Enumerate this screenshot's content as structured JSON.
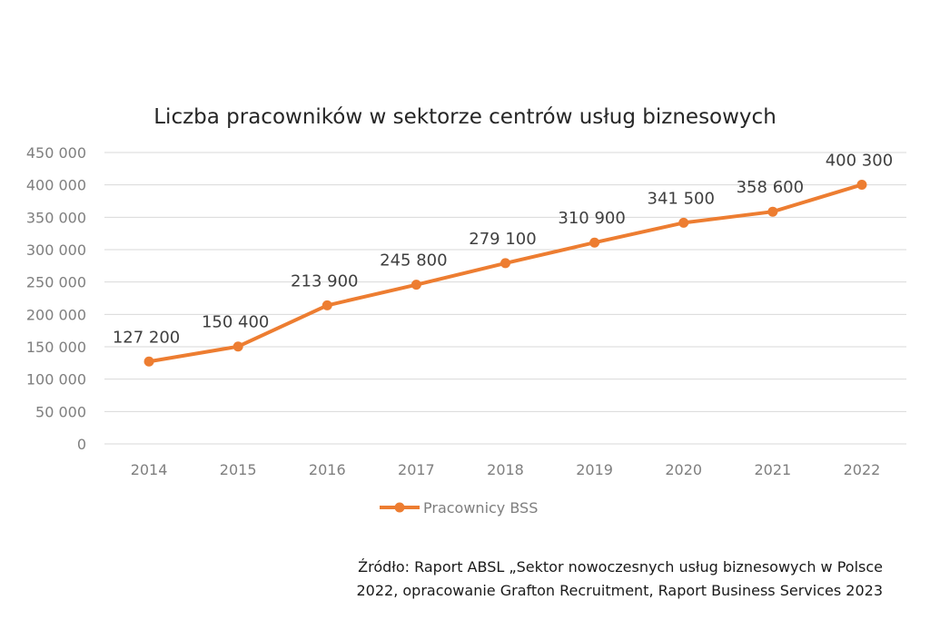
{
  "chart_data": {
    "type": "line",
    "title": "Liczba pracowników w sektorze centrów usług biznesowych",
    "categories": [
      "2014",
      "2015",
      "2016",
      "2017",
      "2018",
      "2019",
      "2020",
      "2021",
      "2022"
    ],
    "series": [
      {
        "name": "Pracownicy BSS",
        "values": [
          127200,
          150400,
          213900,
          245800,
          279100,
          310900,
          341500,
          358600,
          400300
        ],
        "labels": [
          "127 200",
          "150 400",
          "213 900",
          "245 800",
          "279 100",
          "310 900",
          "341 500",
          "358 600",
          "400 300"
        ],
        "color": "#ed7d31"
      }
    ],
    "ylim": [
      0,
      450000
    ],
    "yticks": [
      0,
      50000,
      100000,
      150000,
      200000,
      250000,
      300000,
      350000,
      400000,
      450000
    ],
    "ytick_labels": [
      "0",
      "50 000",
      "100 000",
      "150 000",
      "200 000",
      "250 000",
      "300 000",
      "350 000",
      "400 000",
      "450 000"
    ],
    "grid": true,
    "legend": "bottom"
  },
  "source_note": {
    "line1": "Źródło: Raport ABSL „Sektor nowoczesnych usług biznesowych w Polsce",
    "line2": "2022, opracowanie Grafton Recruitment, Raport Business Services 2023"
  },
  "colors": {
    "gridline": "#d9d9d9",
    "series": "#ed7d31"
  }
}
